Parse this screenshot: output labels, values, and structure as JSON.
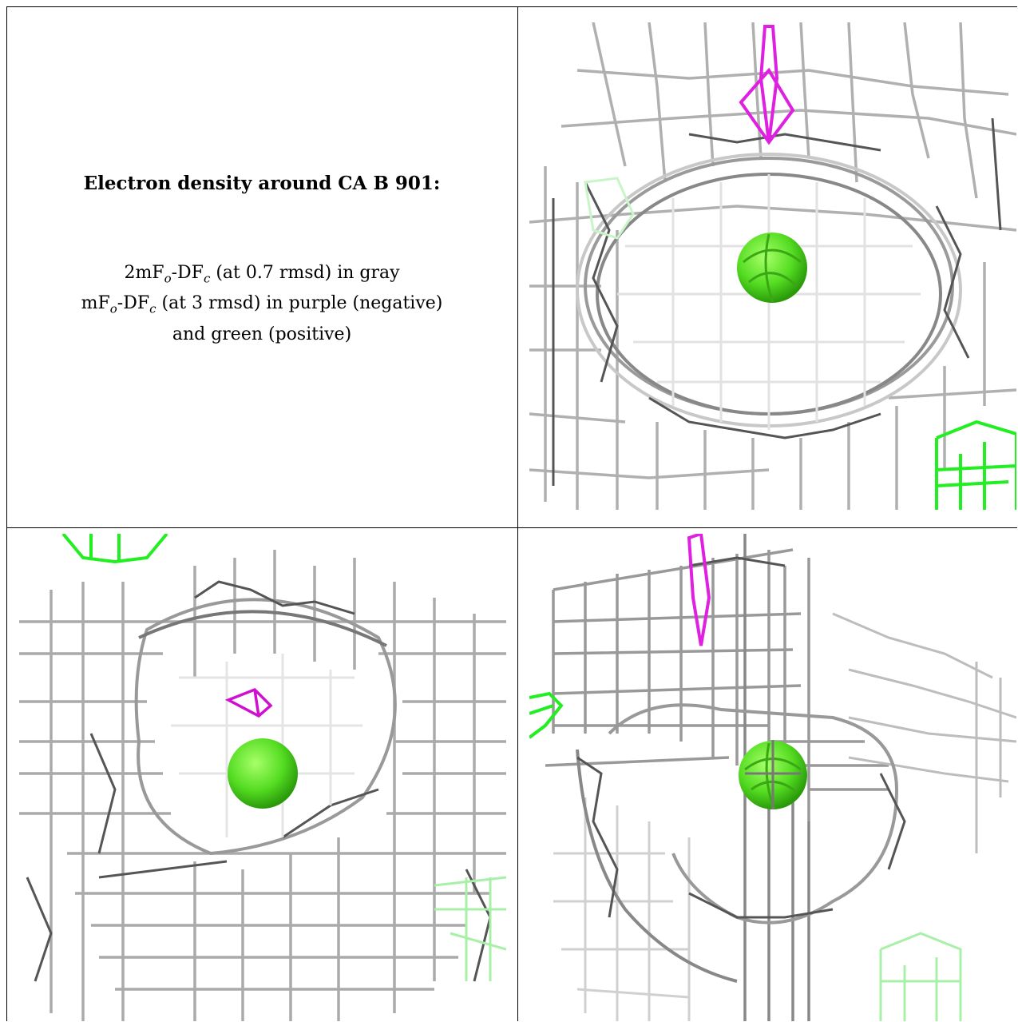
{
  "caption": {
    "title": "Electron density around CA B 901:",
    "line1": {
      "a": "2mF",
      "sub1": "o",
      "b": "-DF",
      "sub2": "c",
      "c": " (at 0.7 rmsd) in gray"
    },
    "line2": {
      "a": "mF",
      "sub1": "o",
      "b": "-DF",
      "sub2": "c",
      "c": " (at 3 rmsd) in purple (negative)"
    },
    "line3": "and green (positive)"
  },
  "colors": {
    "gray_mesh": "#b8b8b8",
    "dark_mesh": "#555555",
    "negative": "#e020e0",
    "positive": "#22ee22",
    "atom": "#55dd22"
  },
  "panels": [
    {
      "name": "view-top-right"
    },
    {
      "name": "view-bottom-left"
    },
    {
      "name": "view-bottom-right"
    }
  ]
}
